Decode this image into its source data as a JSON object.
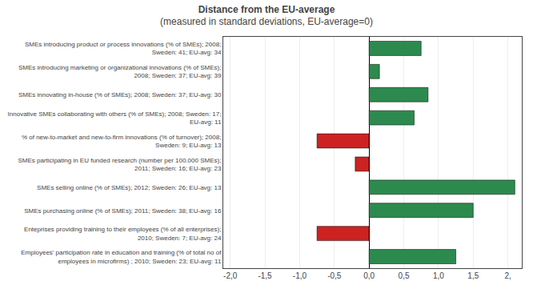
{
  "chart_data": {
    "type": "bar",
    "orientation": "horizontal",
    "title": "Distance from the EU-average",
    "subtitle": "(measured in standard deviations, EU-average=0)",
    "categories": [
      "SMEs introducing product or process innovations (% of SMEs); 2008;\nSweden: 41; EU-avg: 34",
      "SMEs introducing marketing or organizational innovations (% of SMEs);\n2008; Sweden: 37; EU-avg: 39",
      "SMEs innovating in-house (% of SMEs); 2008; Sweden: 37; EU-avg: 30",
      "Innovative SMEs collaborating with others (% of SMEs); 2008; Sweden: 17;\nEU-avg: 11",
      "% of new-to-market and new-to-firm innovations (% of turnover); 2008;\nSweden: 9; EU-avg: 13",
      "SMEs participating in EU funded research (number per 100.000 SMEs);\n2011; Sweden: 16; EU-avg: 23",
      "SMEs selling online (% of SMEs); 2012; Sweden: 26; EU-avg: 13",
      "SMEs purchasing online (% of SMEs); 2011; Sweden: 38; EU-avg: 16",
      "Enteprises providing training to their employees (% of all enterprises);\n2010; Sweden: 7; EU-avg: 24",
      "Employees' participation rate in education and training (% of total no of\nemployees in microfirms) ; 2010; Sweden: 23; EU-avg: 11"
    ],
    "values": [
      0.75,
      0.15,
      0.85,
      0.65,
      -0.75,
      -0.2,
      2.1,
      1.5,
      -0.75,
      1.25
    ],
    "colors": [
      "#2d8a4e",
      "#2d8a4e",
      "#2d8a4e",
      "#2d8a4e",
      "#cc2222",
      "#cc2222",
      "#2d8a4e",
      "#2d8a4e",
      "#cc2222",
      "#2d8a4e"
    ],
    "xlim": [
      -2.1,
      2.2
    ],
    "xticks": [
      {
        "value": -2.0,
        "label": "-2,0"
      },
      {
        "value": -1.5,
        "label": "-1,5"
      },
      {
        "value": -1.0,
        "label": "-1,0"
      },
      {
        "value": -0.5,
        "label": "-0,5"
      },
      {
        "value": 0.0,
        "label": "0,0"
      },
      {
        "value": 0.5,
        "label": "0,5"
      },
      {
        "value": 1.0,
        "label": "1,0"
      },
      {
        "value": 1.5,
        "label": "1,5"
      },
      {
        "value": 2.0,
        "label": "2,"
      }
    ],
    "grid": true
  }
}
